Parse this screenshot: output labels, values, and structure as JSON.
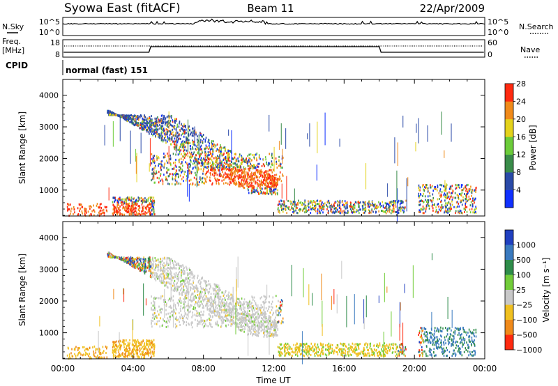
{
  "header": {
    "station": "Syowa East (fitACF)",
    "beam": "Beam 11",
    "date": "22/Apr/2009"
  },
  "noise_panel": {
    "left_label": "N.Sky",
    "right_label": "N.Search",
    "tick_top": "10^5",
    "tick_bottom": "10^0"
  },
  "freq_panel": {
    "left_label_line1": "Freq.",
    "left_label_line2": "[MHz]",
    "left_tick_top": "18",
    "left_tick_bottom": "8",
    "right_label": "Nave",
    "right_tick_top": "60",
    "right_tick_bottom": "0"
  },
  "cpid_panel": {
    "label": "CPID",
    "program": "normal (fast) 151"
  },
  "chart_data": [
    {
      "type": "heatmap",
      "name": "power",
      "ylabel": "Slant Range [km]",
      "ylim": [
        180,
        4500
      ],
      "y_ticks": [
        "1000",
        "2000",
        "3000",
        "4000"
      ],
      "colorbar_label": "Power [dB]",
      "colorbar_ticks": [
        "4",
        "8",
        "12",
        "16",
        "20",
        "24",
        "28"
      ],
      "colorbar_colors": [
        "#1030ff",
        "#2a4aa8",
        "#3a8c4a",
        "#6ccc3a",
        "#e4d21c",
        "#f08a1a",
        "#ff2a10"
      ]
    },
    {
      "type": "heatmap",
      "name": "velocity",
      "ylabel": "Slant Range [km]",
      "ylim": [
        180,
        4500
      ],
      "y_ticks": [
        "1000",
        "2000",
        "3000",
        "4000"
      ],
      "colorbar_label": "Velocity  [m s⁻¹]",
      "colorbar_ticks": [
        "1000",
        "500",
        "100",
        "25",
        "−25",
        "−100",
        "−500",
        "−1000"
      ],
      "colorbar_colors": [
        "#2040c0",
        "#3a7abf",
        "#2e8c4a",
        "#72cc3a",
        "#c8c8c8",
        "#f0c020",
        "#f08a1a",
        "#ff2a10"
      ]
    }
  ],
  "time_axis": {
    "label": "Time UT",
    "ticks": [
      "00:00",
      "04:00",
      "08:00",
      "12:00",
      "16:00",
      "20:00",
      "00:00"
    ]
  }
}
